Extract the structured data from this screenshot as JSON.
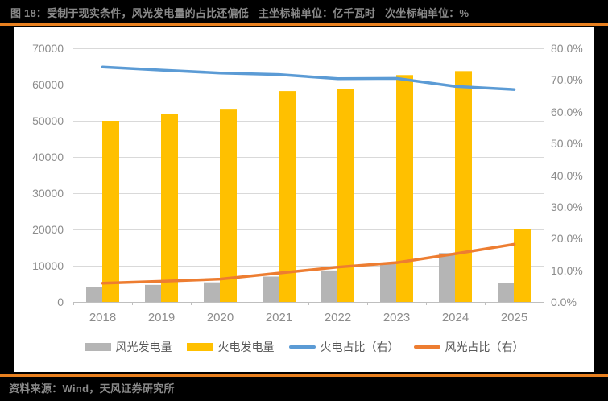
{
  "header": {
    "figure_label": "图 18：",
    "caption": "受制于现实条件，风光发电量的占比还偏低",
    "unit_primary": "主坐标轴单位：亿千瓦时",
    "unit_secondary": "次坐标轴单位：%"
  },
  "footer": {
    "source_text": "资料来源：Wind，天风证券研究所"
  },
  "colors": {
    "background": "#000000",
    "panel": "#ffffff",
    "accent_rule": "#e8801f",
    "bar_wind_solar": "#b5b5b5",
    "bar_thermal": "#ffc000",
    "line_thermal_share": "#5b9bd5",
    "line_wind_solar_share": "#ed7d31",
    "gridline": "#d9d9d9",
    "axis_line": "#bfbfbf",
    "axis_text": "#8c8c8c",
    "legend_text": "#595959",
    "title_text": "#8a8a8a"
  },
  "chart_data": {
    "type": "combo bar+line",
    "categories": [
      "2018",
      "2019",
      "2020",
      "2021",
      "2022",
      "2023",
      "2024",
      "2025"
    ],
    "series": [
      {
        "name": "风光发电量",
        "kind": "bar",
        "axis": "left",
        "color": "#b5b5b5",
        "values": [
          4000,
          4700,
          5400,
          7000,
          8700,
          10500,
          13500,
          5300
        ]
      },
      {
        "name": "火电发电量",
        "kind": "bar",
        "axis": "left",
        "color": "#ffc000",
        "values": [
          50000,
          51800,
          53300,
          58200,
          58800,
          62600,
          63700,
          20000
        ]
      },
      {
        "name": "火电占比（右）",
        "kind": "line",
        "axis": "right",
        "color": "#5b9bd5",
        "values": [
          74.1,
          73.1,
          72.2,
          71.7,
          70.4,
          70.5,
          68.0,
          67.0
        ]
      },
      {
        "name": "风光占比（右）",
        "kind": "line",
        "axis": "right",
        "color": "#ed7d31",
        "values": [
          5.9,
          6.5,
          7.2,
          9.1,
          11.0,
          12.4,
          15.2,
          18.2
        ]
      }
    ],
    "left_axis": {
      "min": 0,
      "max": 70000,
      "tick_step": 10000,
      "ticks": [
        "0",
        "10000",
        "20000",
        "30000",
        "40000",
        "50000",
        "60000",
        "70000"
      ]
    },
    "right_axis": {
      "min": 0,
      "max": 80,
      "tick_step": 10,
      "ticks": [
        "0.0%",
        "10.0%",
        "20.0%",
        "30.0%",
        "40.0%",
        "50.0%",
        "60.0%",
        "70.0%",
        "80.0%"
      ]
    },
    "grid": "horizontal gridlines on",
    "legend_position": "bottom"
  }
}
